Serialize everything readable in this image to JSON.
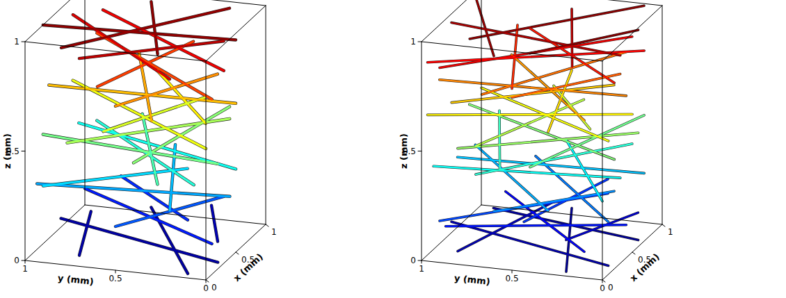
{
  "chart_data": [
    {
      "type": "line3d",
      "xlabel": "x (mm)",
      "ylabel": "y (mm)",
      "zlabel": "z (mm)",
      "xlim": [
        0,
        1
      ],
      "ylim": [
        0,
        1
      ],
      "zlim": [
        0,
        1
      ],
      "xticks": [
        0,
        0.5,
        1
      ],
      "yticks": [
        0,
        0.5,
        1
      ],
      "zticks": [
        0,
        0.5,
        1
      ],
      "color": "jet",
      "clim": [
        0,
        1
      ],
      "fibers": [
        [
          0.0,
          0.1,
          0.02,
          0.9,
          0.6,
          0.05
        ],
        [
          0.2,
          0.0,
          0.03,
          0.6,
          1.0,
          0.04
        ],
        [
          0.5,
          0.1,
          0.04,
          1.0,
          0.3,
          0.06
        ],
        [
          0.0,
          0.7,
          0.05,
          0.8,
          0.9,
          0.03
        ],
        [
          0.1,
          0.0,
          0.14,
          0.7,
          0.9,
          0.16
        ],
        [
          0.3,
          0.2,
          0.18,
          1.0,
          0.8,
          0.15
        ],
        [
          0.0,
          0.5,
          0.2,
          0.6,
          0.1,
          0.22
        ],
        [
          0.0,
          0.2,
          0.3,
          1.0,
          0.5,
          0.32
        ],
        [
          0.4,
          0.0,
          0.28,
          0.2,
          1.0,
          0.3
        ],
        [
          0.6,
          0.3,
          0.33,
          0.0,
          0.9,
          0.35
        ],
        [
          0.1,
          0.1,
          0.4,
          0.9,
          0.9,
          0.42
        ],
        [
          0.5,
          0.0,
          0.38,
          0.9,
          1.0,
          0.4
        ],
        [
          0.0,
          0.4,
          0.5,
          1.0,
          0.2,
          0.52
        ],
        [
          0.2,
          0.0,
          0.48,
          0.3,
          1.0,
          0.5
        ],
        [
          0.7,
          0.1,
          0.55,
          0.1,
          0.8,
          0.53
        ],
        [
          0.4,
          0.4,
          0.3,
          0.45,
          0.5,
          0.6
        ],
        [
          0.0,
          0.0,
          0.6,
          0.8,
          1.0,
          0.62
        ],
        [
          0.3,
          0.1,
          0.63,
          1.0,
          0.6,
          0.65
        ],
        [
          0.1,
          0.6,
          0.6,
          0.9,
          0.3,
          0.58
        ],
        [
          0.0,
          0.3,
          0.7,
          1.0,
          0.7,
          0.72
        ],
        [
          0.5,
          0.0,
          0.68,
          0.4,
          1.0,
          0.7
        ],
        [
          0.8,
          0.2,
          0.72,
          0.0,
          0.5,
          0.75
        ],
        [
          0.1,
          0.0,
          0.8,
          0.9,
          0.9,
          0.82
        ],
        [
          0.0,
          0.6,
          0.83,
          1.0,
          0.4,
          0.8
        ],
        [
          0.0,
          0.2,
          0.9,
          0.8,
          1.0,
          0.92
        ],
        [
          0.3,
          0.0,
          0.88,
          1.0,
          0.9,
          0.9
        ],
        [
          0.6,
          0.1,
          0.93,
          0.0,
          0.7,
          0.95
        ],
        [
          0.1,
          0.3,
          0.98,
          0.9,
          0.6,
          0.99
        ],
        [
          0.5,
          0.0,
          0.97,
          0.3,
          1.0,
          1.0
        ],
        [
          0.0,
          0.8,
          0.99,
          1.0,
          0.2,
          0.97
        ]
      ]
    },
    {
      "type": "line3d",
      "xlabel": "x (mm)",
      "ylabel": "y (mm)",
      "zlabel": "z (mm)",
      "xlim": [
        0,
        1
      ],
      "ylim": [
        0,
        1
      ],
      "zlim": [
        0,
        1
      ],
      "xticks": [
        0,
        0.5,
        1
      ],
      "yticks": [
        0,
        0.5,
        1
      ],
      "zticks": [
        0,
        0.5,
        1
      ],
      "color": "jet",
      "clim": [
        0,
        1
      ],
      "fibers": [
        [
          0.0,
          0.2,
          0.02,
          1.0,
          0.5,
          0.03
        ],
        [
          0.1,
          0.0,
          0.04,
          0.5,
          1.0,
          0.05
        ],
        [
          0.6,
          0.0,
          0.03,
          0.9,
          0.9,
          0.02
        ],
        [
          0.0,
          0.8,
          0.06,
          1.0,
          0.6,
          0.05
        ],
        [
          0.3,
          0.3,
          0.08,
          0.9,
          0.1,
          0.07
        ],
        [
          0.0,
          0.1,
          0.12,
          0.8,
          0.8,
          0.13
        ],
        [
          0.4,
          0.0,
          0.15,
          0.1,
          0.9,
          0.14
        ],
        [
          0.2,
          0.5,
          0.17,
          1.0,
          0.3,
          0.18
        ],
        [
          0.0,
          0.9,
          0.19,
          0.7,
          0.2,
          0.2
        ],
        [
          0.1,
          0.0,
          0.24,
          1.0,
          0.7,
          0.25
        ],
        [
          0.5,
          0.1,
          0.27,
          0.0,
          0.6,
          0.26
        ],
        [
          0.0,
          0.3,
          0.29,
          0.9,
          1.0,
          0.3
        ],
        [
          0.7,
          0.0,
          0.31,
          0.6,
          1.0,
          0.32
        ],
        [
          0.0,
          0.0,
          0.36,
          0.9,
          0.5,
          0.37
        ],
        [
          0.3,
          0.0,
          0.39,
          0.2,
          1.0,
          0.38
        ],
        [
          0.8,
          0.1,
          0.41,
          0.0,
          0.7,
          0.42
        ],
        [
          0.1,
          0.6,
          0.43,
          1.0,
          0.9,
          0.44
        ],
        [
          0.0,
          0.4,
          0.48,
          1.0,
          0.1,
          0.49
        ],
        [
          0.2,
          0.0,
          0.5,
          0.8,
          1.0,
          0.51
        ],
        [
          0.6,
          0.0,
          0.52,
          0.0,
          0.8,
          0.53
        ],
        [
          0.0,
          0.7,
          0.55,
          0.9,
          0.4,
          0.56
        ],
        [
          0.4,
          0.2,
          0.57,
          1.0,
          0.6,
          0.58
        ],
        [
          0.1,
          0.0,
          0.61,
          0.7,
          0.9,
          0.62
        ],
        [
          0.5,
          0.0,
          0.63,
          0.1,
          1.0,
          0.64
        ],
        [
          0.0,
          0.3,
          0.65,
          1.0,
          0.5,
          0.66
        ],
        [
          0.8,
          0.2,
          0.67,
          0.2,
          0.9,
          0.68
        ],
        [
          0.0,
          0.1,
          0.72,
          0.9,
          0.8,
          0.73
        ],
        [
          0.4,
          0.0,
          0.74,
          0.3,
          1.0,
          0.75
        ],
        [
          0.1,
          0.7,
          0.76,
          1.0,
          0.2,
          0.77
        ],
        [
          0.6,
          0.1,
          0.78,
          0.0,
          0.5,
          0.79
        ],
        [
          0.0,
          0.5,
          0.83,
          1.0,
          0.8,
          0.84
        ],
        [
          0.2,
          0.0,
          0.85,
          0.9,
          0.7,
          0.86
        ],
        [
          0.7,
          0.0,
          0.87,
          0.1,
          1.0,
          0.88
        ],
        [
          0.0,
          0.9,
          0.89,
          0.8,
          0.1,
          0.9
        ],
        [
          0.1,
          0.2,
          0.93,
          1.0,
          0.5,
          0.94
        ],
        [
          0.3,
          0.0,
          0.95,
          0.5,
          1.0,
          0.96
        ],
        [
          0.0,
          0.6,
          0.97,
          0.9,
          1.0,
          0.98
        ],
        [
          0.6,
          0.0,
          0.99,
          0.0,
          0.4,
          1.0
        ],
        [
          0.2,
          0.8,
          0.98,
          1.0,
          0.1,
          0.99
        ]
      ]
    }
  ]
}
